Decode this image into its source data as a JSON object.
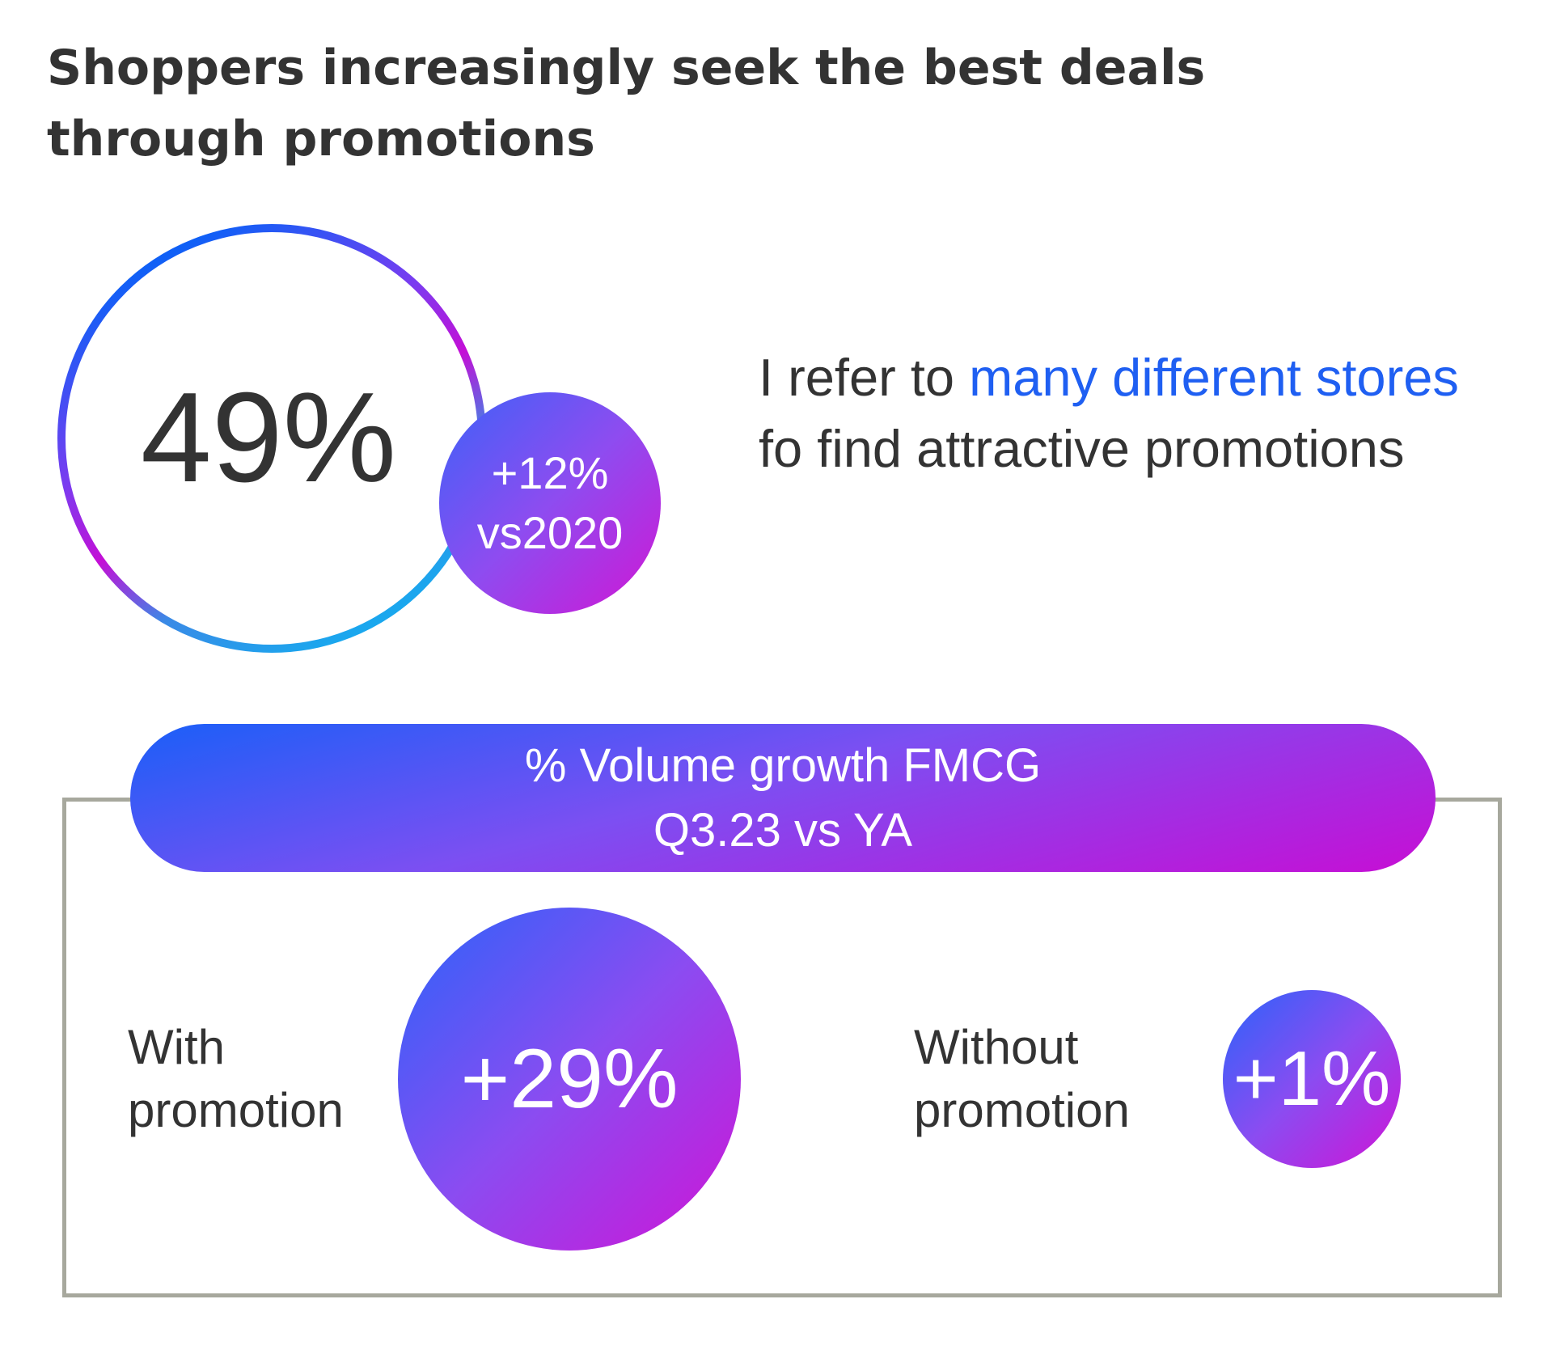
{
  "title": {
    "line1": "Shoppers increasingly seek the best deals",
    "line2": "through promotions"
  },
  "stat": {
    "value": "49%",
    "badge_line1": "+12%",
    "badge_line2": "vs2020"
  },
  "statement": {
    "part1": "I refer to ",
    "highlight": "many different stores",
    "part2": " fo find attractive promotions",
    "highlight_color": "#1f5ff2"
  },
  "volume": {
    "header_line1": "% Volume growth FMCG",
    "header_line2": "Q3.23 vs YA",
    "with_label_line1": "With",
    "with_label_line2": "promotion",
    "with_value": "+29%",
    "without_label_line1": "Without",
    "without_label_line2": "promotion",
    "without_value": "+1%"
  },
  "colors": {
    "gradient_blue": "#1a5ff8",
    "gradient_purple": "#8e4cf0",
    "gradient_magenta": "#cf14d6",
    "cyan": "#1aa7ee",
    "panel_border": "#a7a89d",
    "text": "#333333"
  }
}
